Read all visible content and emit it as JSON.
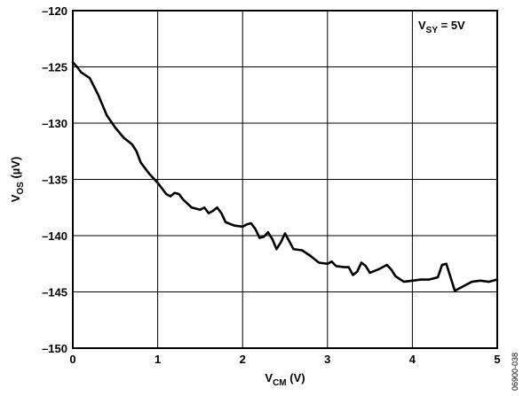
{
  "chart_data": {
    "type": "line",
    "x_label": {
      "text": "V",
      "sub": "CM",
      "after": " (V)"
    },
    "y_label": {
      "text": "V",
      "sub": "OS",
      "after": " (µV)"
    },
    "annotation": {
      "text": "V",
      "sub": "SY",
      "after": " = 5V"
    },
    "figure_id": "06900-038",
    "xlim": [
      0,
      5
    ],
    "xticks": [
      0,
      1,
      2,
      3,
      4,
      5
    ],
    "ylim": [
      -150,
      -120
    ],
    "yticks": [
      {
        "value": -150,
        "label": "–150"
      },
      {
        "value": -145,
        "label": "–145"
      },
      {
        "value": -140,
        "label": "–140"
      },
      {
        "value": -135,
        "label": "–135"
      },
      {
        "value": -130,
        "label": "–130"
      },
      {
        "value": -125,
        "label": "–125"
      },
      {
        "value": -120,
        "label": "–120"
      }
    ],
    "grid": true,
    "series": [
      {
        "color": "#000000",
        "x": [
          0,
          0.05,
          0.1,
          0.2,
          0.3,
          0.4,
          0.5,
          0.6,
          0.7,
          0.75,
          0.8,
          0.9,
          1.0,
          1.1,
          1.15,
          1.2,
          1.25,
          1.3,
          1.4,
          1.5,
          1.55,
          1.6,
          1.65,
          1.7,
          1.75,
          1.8,
          1.9,
          2.0,
          2.05,
          2.1,
          2.15,
          2.2,
          2.25,
          2.3,
          2.35,
          2.4,
          2.45,
          2.5,
          2.55,
          2.6,
          2.7,
          2.8,
          2.9,
          3.0,
          3.05,
          3.1,
          3.2,
          3.25,
          3.3,
          3.35,
          3.4,
          3.45,
          3.5,
          3.6,
          3.7,
          3.75,
          3.8,
          3.9,
          4.0,
          4.1,
          4.2,
          4.3,
          4.35,
          4.4,
          4.45,
          4.5,
          4.6,
          4.7,
          4.8,
          4.9,
          5.0
        ],
        "values": [
          -124.6,
          -125.0,
          -125.5,
          -126.0,
          -127.5,
          -129.3,
          -130.4,
          -131.3,
          -131.9,
          -132.5,
          -133.5,
          -134.5,
          -135.3,
          -136.3,
          -136.5,
          -136.2,
          -136.3,
          -136.8,
          -137.5,
          -137.7,
          -137.5,
          -138.0,
          -137.8,
          -137.5,
          -138.0,
          -138.8,
          -139.1,
          -139.2,
          -139.0,
          -138.9,
          -139.4,
          -140.2,
          -140.1,
          -139.7,
          -140.3,
          -141.2,
          -140.6,
          -139.8,
          -140.5,
          -141.2,
          -141.3,
          -141.8,
          -142.4,
          -142.5,
          -142.3,
          -142.7,
          -142.8,
          -142.8,
          -143.5,
          -143.2,
          -142.4,
          -142.7,
          -143.3,
          -143.0,
          -142.6,
          -143.0,
          -143.6,
          -144.1,
          -144.0,
          -143.9,
          -143.9,
          -143.7,
          -142.6,
          -142.5,
          -143.7,
          -144.9,
          -144.5,
          -144.1,
          -144.0,
          -144.1,
          -143.9
        ]
      }
    ]
  }
}
